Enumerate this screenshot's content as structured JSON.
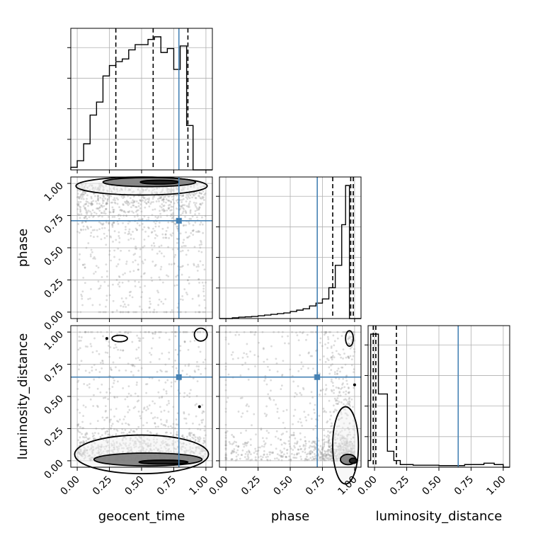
{
  "chart_data": {
    "type": "corner",
    "parameters": [
      "geocent_time",
      "phase",
      "luminosity_distance"
    ],
    "truths": {
      "geocent_time": 0.79,
      "phase": 0.71,
      "luminosity_distance": 0.65
    },
    "colors": {
      "truth": "#4682b4",
      "histogram": "#000000",
      "scatter": "#9a9a9a",
      "contour": "#000000",
      "grid": "#b0b0b0"
    },
    "tick_labels": [
      "0.00",
      "0.25",
      "0.50",
      "0.75",
      "1.00"
    ],
    "grid": true,
    "marginals": [
      {
        "parameter": "geocent_time",
        "range": [
          -0.05,
          1.05
        ],
        "bin_edges": [
          -0.05,
          -0.0,
          0.05,
          0.1,
          0.15,
          0.2,
          0.25,
          0.3,
          0.35,
          0.4,
          0.45,
          0.5,
          0.55,
          0.6,
          0.65,
          0.7,
          0.75,
          0.8,
          0.85,
          0.9,
          0.95,
          1.0,
          1.05
        ],
        "counts": [
          0.02,
          0.07,
          0.2,
          0.42,
          0.52,
          0.72,
          0.8,
          0.83,
          0.85,
          0.92,
          0.96,
          0.96,
          1.0,
          1.02,
          0.9,
          0.93,
          0.77,
          0.95,
          0.34,
          0.0,
          0.0,
          0.0
        ],
        "quantiles": [
          0.3,
          0.59,
          0.86
        ]
      },
      {
        "parameter": "phase",
        "range": [
          -0.05,
          1.05
        ],
        "bin_edges": [
          -0.05,
          0.0,
          0.05,
          0.1,
          0.15,
          0.2,
          0.25,
          0.3,
          0.35,
          0.4,
          0.45,
          0.5,
          0.55,
          0.6,
          0.65,
          0.7,
          0.75,
          0.8,
          0.85,
          0.9,
          0.93,
          0.96,
          1.0,
          1.05
        ],
        "counts": [
          0.0,
          0.0,
          0.005,
          0.01,
          0.012,
          0.015,
          0.02,
          0.025,
          0.03,
          0.035,
          0.04,
          0.05,
          0.06,
          0.07,
          0.09,
          0.11,
          0.14,
          0.22,
          0.38,
          0.67,
          0.95,
          0.0,
          0.0
        ],
        "quantiles": [
          0.83,
          0.97,
          0.99
        ]
      },
      {
        "parameter": "luminosity_distance",
        "range": [
          -0.05,
          1.05
        ],
        "bin_edges": [
          -0.05,
          -0.03,
          0.03,
          0.1,
          0.15,
          0.2,
          0.3,
          0.5,
          0.7,
          0.85,
          0.93,
          1.0,
          1.05
        ],
        "counts": [
          0.05,
          1.0,
          0.55,
          0.12,
          0.05,
          0.02,
          0.015,
          0.012,
          0.02,
          0.03,
          0.02,
          0.0
        ],
        "quantiles": [
          -0.01,
          0.01,
          0.17
        ]
      }
    ],
    "panels_2d": [
      {
        "x": "geocent_time",
        "y": "phase",
        "scatter_region": {
          "x": [
            0.0,
            1.0
          ],
          "y": [
            0.0,
            1.0
          ],
          "density": "concentrated near phase 1.0"
        },
        "contours": [
          {
            "level": "outer",
            "cx": 0.5,
            "cy": 0.98,
            "rx": 0.51,
            "ry": 0.07
          },
          {
            "level": "middle",
            "cx": 0.56,
            "cy": 1.01,
            "rx": 0.36,
            "ry": 0.035
          },
          {
            "level": "inner",
            "cx": 0.64,
            "cy": 1.01,
            "rx": 0.15,
            "ry": 0.015
          }
        ]
      },
      {
        "x": "geocent_time",
        "y": "luminosity_distance",
        "scatter_region": {
          "x": [
            0.0,
            1.0
          ],
          "y": [
            0.0,
            1.0
          ],
          "density": "concentrated near luminosity_distance 0.0"
        },
        "contours": [
          {
            "level": "outer",
            "cx": 0.5,
            "cy": 0.05,
            "rx": 0.52,
            "ry": 0.15
          },
          {
            "level": "middle",
            "cx": 0.55,
            "cy": 0.01,
            "rx": 0.42,
            "ry": 0.05
          },
          {
            "level": "inner",
            "cx": 0.67,
            "cy": -0.01,
            "rx": 0.19,
            "ry": 0.015
          },
          {
            "level": "island",
            "cx": 0.33,
            "cy": 0.95,
            "rx": 0.06,
            "ry": 0.025
          },
          {
            "level": "island",
            "cx": 0.96,
            "cy": 0.98,
            "rx": 0.05,
            "ry": 0.05
          },
          {
            "level": "point",
            "cx": 0.95,
            "cy": 0.42,
            "rx": 0.006,
            "ry": 0.006
          },
          {
            "level": "point",
            "cx": 0.23,
            "cy": 0.95,
            "rx": 0.006,
            "ry": 0.006
          }
        ]
      },
      {
        "x": "phase",
        "y": "luminosity_distance",
        "scatter_region": {
          "x": [
            0.0,
            1.0
          ],
          "y": [
            0.0,
            1.0
          ],
          "density": "concentrated near phase 1.0, luminosity_distance 0.0"
        },
        "contours": [
          {
            "level": "outer",
            "cx": 0.93,
            "cy": 0.12,
            "rx": 0.1,
            "ry": 0.3
          },
          {
            "level": "middle",
            "cx": 0.95,
            "cy": 0.01,
            "rx": 0.06,
            "ry": 0.04
          },
          {
            "level": "inner",
            "cx": 0.99,
            "cy": 0.0,
            "rx": 0.03,
            "ry": 0.02
          },
          {
            "level": "island",
            "cx": 0.96,
            "cy": 0.95,
            "rx": 0.03,
            "ry": 0.06
          },
          {
            "level": "point",
            "cx": 1.0,
            "cy": 0.59,
            "rx": 0.006,
            "ry": 0.006
          }
        ]
      }
    ]
  }
}
